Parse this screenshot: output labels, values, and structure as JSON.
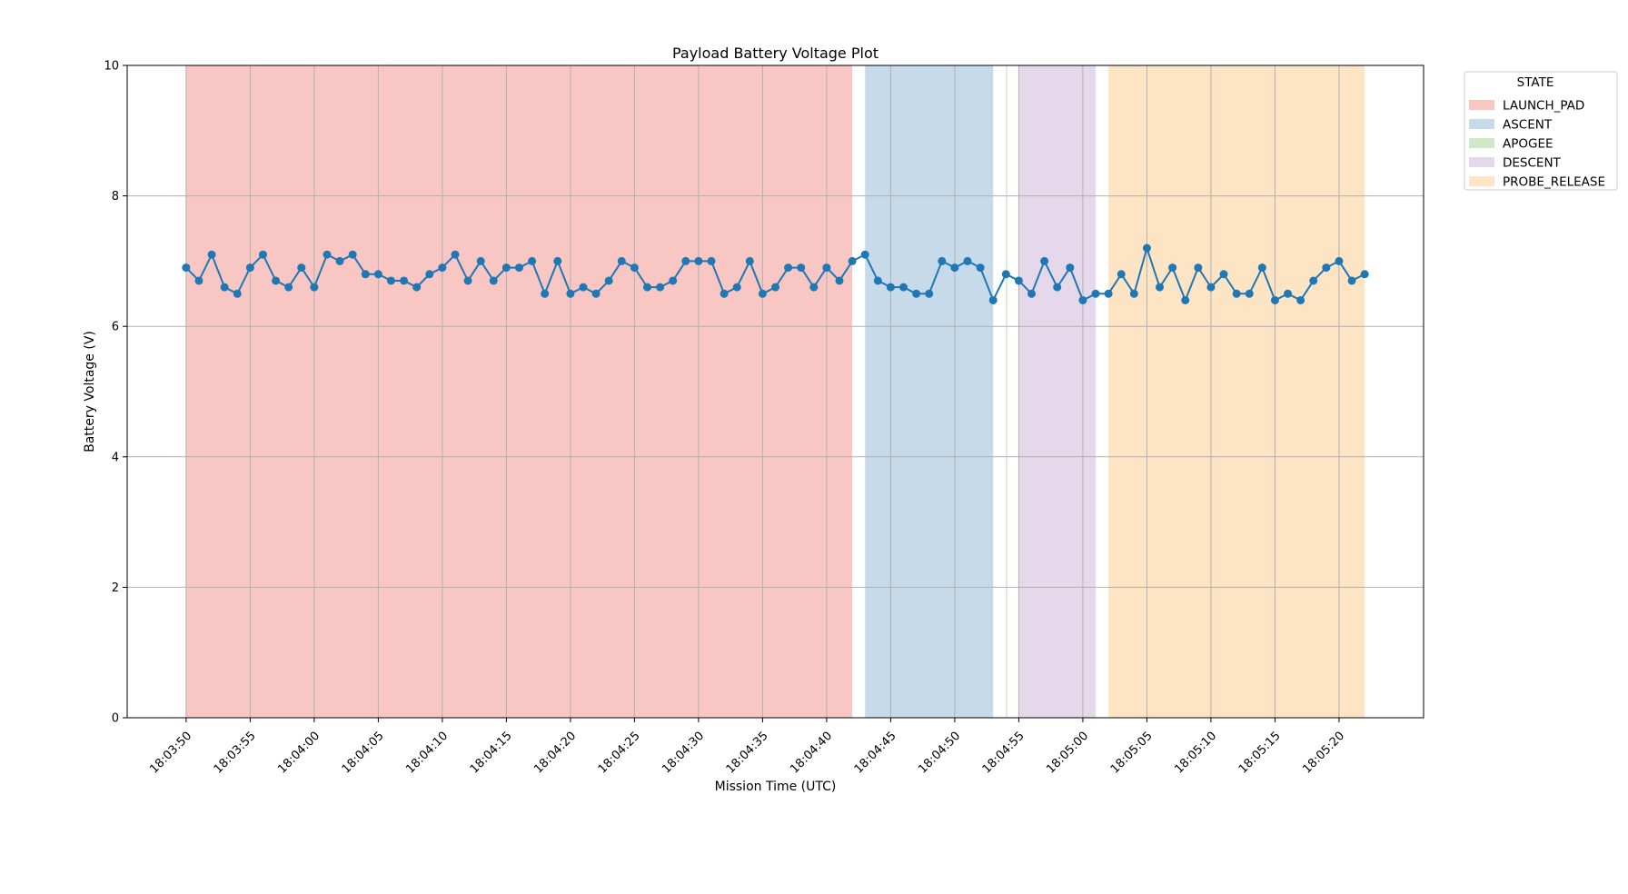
{
  "chart_data": {
    "type": "line",
    "title": "Payload Battery Voltage Plot",
    "xlabel": "Mission Time (UTC)",
    "ylabel": "Battery Voltage (V)",
    "ylim": [
      0,
      10
    ],
    "yticks": [
      0,
      2,
      4,
      6,
      8,
      10
    ],
    "xlim": [
      "18:03:45.4",
      "18:05:26.6"
    ],
    "xticks": [
      "18:03:50",
      "18:03:55",
      "18:04:00",
      "18:04:05",
      "18:04:10",
      "18:04:15",
      "18:04:20",
      "18:04:25",
      "18:04:30",
      "18:04:35",
      "18:04:40",
      "18:04:45",
      "18:04:50",
      "18:04:55",
      "18:05:00",
      "18:05:05",
      "18:05:10",
      "18:05:15",
      "18:05:20"
    ],
    "grid": true,
    "series": [
      {
        "color": "#1f77b4",
        "marker": "circle",
        "x_start": "18:03:50",
        "x_step_seconds": 1,
        "values": [
          6.9,
          6.7,
          7.1,
          6.6,
          6.5,
          6.9,
          7.1,
          6.7,
          6.6,
          6.9,
          6.6,
          7.1,
          7.0,
          7.1,
          6.8,
          6.8,
          6.7,
          6.7,
          6.6,
          6.8,
          6.9,
          7.1,
          6.7,
          7.0,
          6.7,
          6.9,
          6.9,
          7.0,
          6.5,
          7.0,
          6.5,
          6.6,
          6.5,
          6.7,
          7.0,
          6.9,
          6.6,
          6.6,
          6.7,
          7.0,
          7.0,
          7.0,
          6.5,
          6.6,
          7.0,
          6.5,
          6.6,
          6.9,
          6.9,
          6.6,
          6.9,
          6.7,
          7.0,
          7.1,
          6.7,
          6.6,
          6.6,
          6.5,
          6.5,
          7.0,
          6.9,
          7.0,
          6.9,
          6.4,
          6.8,
          6.7,
          6.5,
          7.0,
          6.6,
          6.9,
          6.4,
          6.5,
          6.5,
          6.8,
          6.5,
          7.2,
          6.6,
          6.9,
          6.4,
          6.9,
          6.6,
          6.8,
          6.5,
          6.5,
          6.9,
          6.4,
          6.5,
          6.4,
          6.7,
          6.9,
          7.0,
          6.7,
          6.8
        ]
      }
    ],
    "state_spans": [
      {
        "state": "LAUNCH_PAD",
        "start": "18:03:50",
        "end": "18:04:42",
        "color": "#f8c7c4"
      },
      {
        "state": "ASCENT",
        "start": "18:04:43",
        "end": "18:04:53",
        "color": "#c6daea"
      },
      {
        "state": "APOGEE",
        "start": "18:04:54",
        "end": "18:04:54",
        "color": "#cfe9c8"
      },
      {
        "state": "DESCENT",
        "start": "18:04:55",
        "end": "18:05:01",
        "color": "#e5d8ea"
      },
      {
        "state": "PROBE_RELEASE",
        "start": "18:05:02",
        "end": "18:05:22",
        "color": "#fde4c4"
      }
    ],
    "legend": {
      "title": "STATE",
      "placement": "outside upper right",
      "entries": [
        "LAUNCH_PAD",
        "ASCENT",
        "APOGEE",
        "DESCENT",
        "PROBE_RELEASE"
      ]
    }
  }
}
